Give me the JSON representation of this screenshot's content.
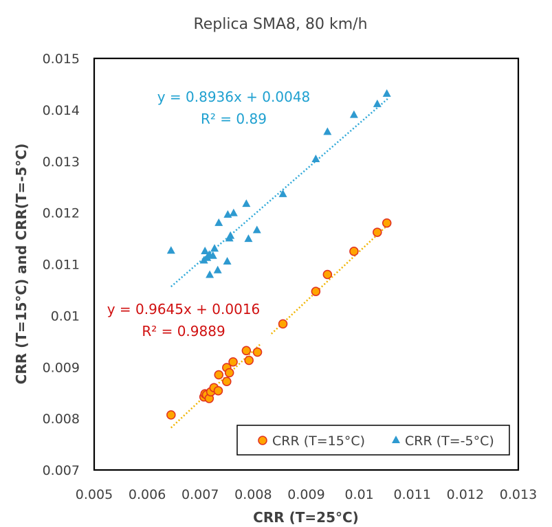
{
  "chart_data": {
    "type": "scatter",
    "title": "Replica SMA8, 80 km/h",
    "xlabel": "CRR (T=25°C)",
    "ylabel": "CRR (T=15°C) and CRR(T=-5°C)",
    "xlim": [
      0.005,
      0.013
    ],
    "ylim": [
      0.007,
      0.015
    ],
    "xticks": [
      "0.005",
      "0.006",
      "0.007",
      "0.008",
      "0.009",
      "0.01",
      "0.011",
      "0.012",
      "0.013"
    ],
    "yticks": [
      "0.007",
      "0.008",
      "0.009",
      "0.01",
      "0.011",
      "0.012",
      "0.013",
      "0.014",
      "0.015"
    ],
    "grid": false,
    "legend_position": "bottom-right",
    "series": [
      {
        "name": "CRR (T=15°C)",
        "marker": "circle",
        "color": "#FFA500",
        "edge_color": "#E03020",
        "trend_color": "#F0B400",
        "trendline": {
          "slope": 0.9645,
          "intercept": 0.0016,
          "x_range": [
            0.00645,
            0.01055
          ]
        },
        "equation": "y = 0.9645x + 0.0016",
        "r2": "R² = 0.9889",
        "label_color": "#D01010",
        "points": [
          {
            "x": 0.00645,
            "y": 0.00807
          },
          {
            "x": 0.00707,
            "y": 0.00842
          },
          {
            "x": 0.00709,
            "y": 0.00848
          },
          {
            "x": 0.00712,
            "y": 0.00846
          },
          {
            "x": 0.00717,
            "y": 0.00839
          },
          {
            "x": 0.0072,
            "y": 0.00852
          },
          {
            "x": 0.00726,
            "y": 0.0086
          },
          {
            "x": 0.00734,
            "y": 0.00854
          },
          {
            "x": 0.00735,
            "y": 0.00885
          },
          {
            "x": 0.0075,
            "y": 0.00872
          },
          {
            "x": 0.0075,
            "y": 0.00899
          },
          {
            "x": 0.00755,
            "y": 0.00889
          },
          {
            "x": 0.00762,
            "y": 0.0091
          },
          {
            "x": 0.00787,
            "y": 0.00932
          },
          {
            "x": 0.00792,
            "y": 0.00913
          },
          {
            "x": 0.00808,
            "y": 0.00929
          },
          {
            "x": 0.00856,
            "y": 0.00984
          },
          {
            "x": 0.00918,
            "y": 0.01047
          },
          {
            "x": 0.0094,
            "y": 0.0108
          },
          {
            "x": 0.0099,
            "y": 0.01125
          },
          {
            "x": 0.01034,
            "y": 0.01162
          },
          {
            "x": 0.01052,
            "y": 0.0118
          }
        ]
      },
      {
        "name": "CRR (T=-5°C)",
        "marker": "triangle",
        "color": "#2E9AD0",
        "edge_color": "#2E9AD0",
        "trend_color": "#2EA8D8",
        "trendline": {
          "slope": 0.8936,
          "intercept": 0.0048,
          "x_range": [
            0.00645,
            0.01055
          ]
        },
        "equation": "y = 0.8936x + 0.0048",
        "r2": "R² = 0.89",
        "label_color": "#1EA0D0",
        "points": [
          {
            "x": 0.00645,
            "y": 0.01127
          },
          {
            "x": 0.00707,
            "y": 0.01108
          },
          {
            "x": 0.00709,
            "y": 0.01126
          },
          {
            "x": 0.00713,
            "y": 0.01113
          },
          {
            "x": 0.00717,
            "y": 0.01119
          },
          {
            "x": 0.00718,
            "y": 0.0108
          },
          {
            "x": 0.00724,
            "y": 0.01117
          },
          {
            "x": 0.00727,
            "y": 0.01131
          },
          {
            "x": 0.00733,
            "y": 0.01089
          },
          {
            "x": 0.00735,
            "y": 0.01181
          },
          {
            "x": 0.00751,
            "y": 0.01106
          },
          {
            "x": 0.00752,
            "y": 0.01197
          },
          {
            "x": 0.00755,
            "y": 0.01151
          },
          {
            "x": 0.00757,
            "y": 0.01156
          },
          {
            "x": 0.00763,
            "y": 0.012
          },
          {
            "x": 0.00787,
            "y": 0.01218
          },
          {
            "x": 0.00791,
            "y": 0.0115
          },
          {
            "x": 0.00807,
            "y": 0.01167
          },
          {
            "x": 0.00856,
            "y": 0.01237
          },
          {
            "x": 0.00918,
            "y": 0.01305
          },
          {
            "x": 0.0094,
            "y": 0.01358
          },
          {
            "x": 0.0099,
            "y": 0.01391
          },
          {
            "x": 0.01034,
            "y": 0.01412
          },
          {
            "x": 0.01052,
            "y": 0.01432
          }
        ]
      }
    ]
  }
}
